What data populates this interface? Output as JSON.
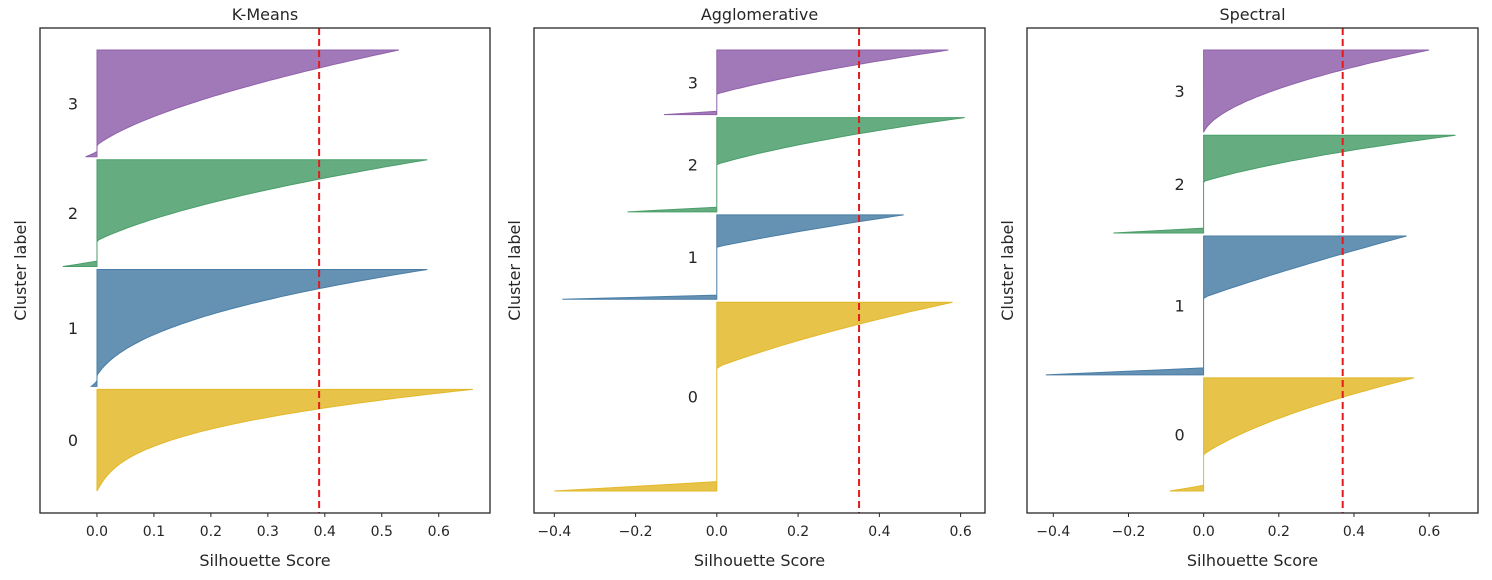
{
  "chart_data": [
    {
      "type": "area",
      "title": "K-Means",
      "xlabel": "Silhouette Score",
      "ylabel": "Cluster label",
      "xlim": [
        -0.1,
        0.69
      ],
      "x_ticks": [
        0.0,
        0.1,
        0.2,
        0.3,
        0.4,
        0.5,
        0.6
      ],
      "tick_format": "fixed1",
      "average_score": 0.39,
      "series": [
        {
          "label": "0",
          "color": "#e3b82a",
          "min": 0.0,
          "max": 0.66,
          "shape": 2.8
        },
        {
          "label": "1",
          "color": "#4a7ea6",
          "min": -0.01,
          "max": 0.58,
          "shape": 2.4
        },
        {
          "label": "2",
          "color": "#4a9e6a",
          "min": -0.06,
          "max": 0.58,
          "shape": 1.9
        },
        {
          "label": "3",
          "color": "#9062ab",
          "min": -0.02,
          "max": 0.53,
          "shape": 1.7
        }
      ],
      "cluster_sizes": [
        100,
        115,
        105,
        105
      ]
    },
    {
      "type": "area",
      "title": "Agglomerative",
      "xlabel": "Silhouette Score",
      "ylabel": "Cluster label",
      "xlim": [
        -0.45,
        0.66
      ],
      "x_ticks": [
        -0.4,
        -0.2,
        0.0,
        0.2,
        0.4,
        0.6
      ],
      "tick_format": "signed1",
      "average_score": 0.35,
      "series": [
        {
          "label": "0",
          "color": "#e3b82a",
          "min": -0.4,
          "max": 0.58,
          "shape": 2.4
        },
        {
          "label": "1",
          "color": "#4a7ea6",
          "min": -0.38,
          "max": 0.46,
          "shape": 1.8
        },
        {
          "label": "2",
          "color": "#4a9e6a",
          "min": -0.22,
          "max": 0.61,
          "shape": 2.2
        },
        {
          "label": "3",
          "color": "#9062ab",
          "min": -0.13,
          "max": 0.57,
          "shape": 1.6
        }
      ],
      "cluster_sizes": [
        190,
        85,
        95,
        65
      ]
    },
    {
      "type": "area",
      "title": "Spectral",
      "xlabel": "Silhouette Score",
      "ylabel": "Cluster label",
      "xlim": [
        -0.47,
        0.73
      ],
      "x_ticks": [
        -0.4,
        -0.2,
        0.0,
        0.2,
        0.4,
        0.6
      ],
      "tick_format": "signed1",
      "average_score": 0.37,
      "series": [
        {
          "label": "0",
          "color": "#e3b82a",
          "min": -0.09,
          "max": 0.56,
          "shape": 2.0
        },
        {
          "label": "1",
          "color": "#4a7ea6",
          "min": -0.42,
          "max": 0.54,
          "shape": 1.5
        },
        {
          "label": "2",
          "color": "#4a9e6a",
          "min": -0.24,
          "max": 0.67,
          "shape": 2.4
        },
        {
          "label": "3",
          "color": "#9062ab",
          "min": 0.0,
          "max": 0.6,
          "shape": 1.9
        }
      ],
      "cluster_sizes": [
        110,
        135,
        95,
        80
      ]
    }
  ],
  "colors": {
    "average_line": "#e41a1c",
    "axes": "#262626",
    "background": "#ffffff"
  }
}
